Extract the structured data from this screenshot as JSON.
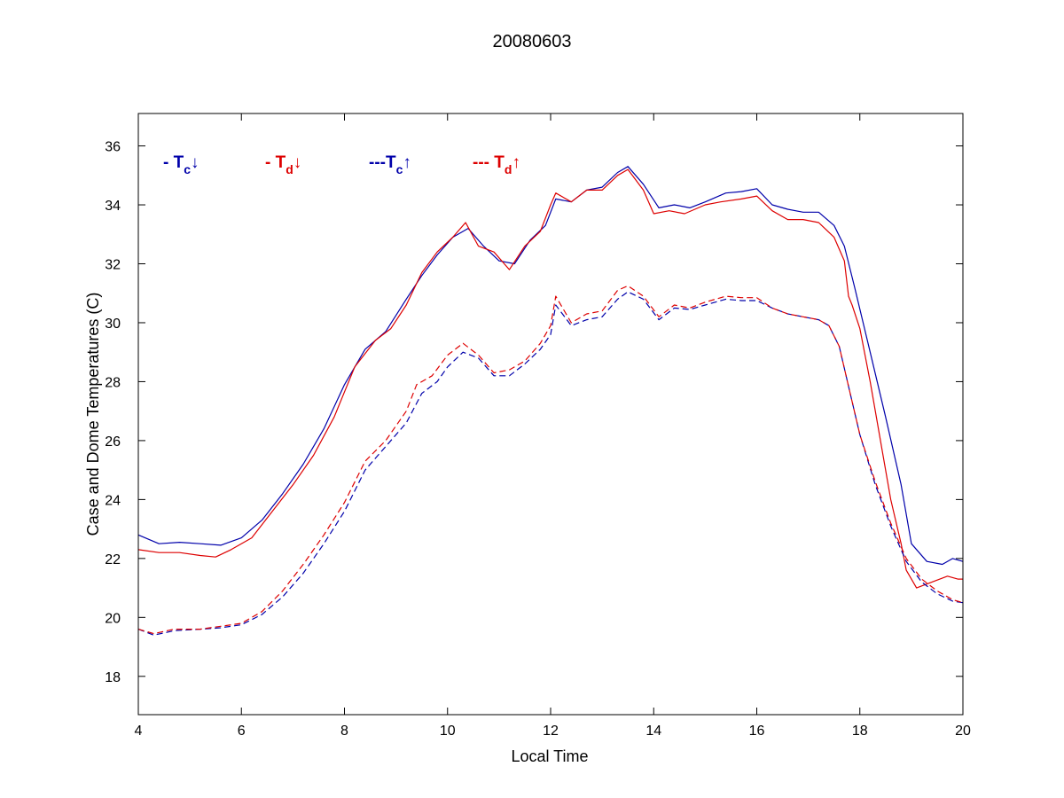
{
  "chart_data": {
    "type": "line",
    "title": "20080603",
    "xlabel": "Local Time",
    "ylabel": "Case and Dome Temperatures (C)",
    "xlim": [
      4,
      20
    ],
    "ylim": [
      16.7,
      37.1
    ],
    "xticks": [
      4,
      6,
      8,
      10,
      12,
      14,
      16,
      18,
      20
    ],
    "yticks": [
      18,
      20,
      22,
      24,
      26,
      28,
      30,
      32,
      34,
      36
    ],
    "xtick_labels": [
      "4",
      "6",
      "8",
      "10",
      "12",
      "14",
      "16",
      "18",
      "20"
    ],
    "ytick_labels": [
      "18",
      "20",
      "22",
      "24",
      "26",
      "28",
      "30",
      "32",
      "34",
      "36"
    ],
    "grid": false,
    "legend_position": "top-left inside",
    "legend": [
      {
        "prefix": "- T",
        "sub": "c",
        "arrow": "↓",
        "color": "#0000aa"
      },
      {
        "prefix": "- T",
        "sub": "d",
        "arrow": "↓",
        "color": "#dd0000"
      },
      {
        "prefix": "---T",
        "sub": "c",
        "arrow": "↑",
        "color": "#0000aa"
      },
      {
        "prefix": "--- T",
        "sub": "d",
        "arrow": "↑",
        "color": "#dd0000"
      }
    ],
    "series": [
      {
        "color": "#0000aa",
        "dash": "solid",
        "x": [
          4.0,
          4.4,
          4.8,
          5.2,
          5.6,
          6.0,
          6.4,
          6.8,
          7.2,
          7.6,
          8.0,
          8.4,
          8.8,
          9.2,
          9.5,
          9.8,
          10.1,
          10.4,
          10.7,
          11.0,
          11.3,
          11.6,
          11.9,
          12.1,
          12.4,
          12.7,
          13.0,
          13.3,
          13.5,
          13.8,
          14.1,
          14.4,
          14.7,
          15.0,
          15.4,
          15.7,
          16.0,
          16.3,
          16.6,
          16.9,
          17.2,
          17.5,
          17.7,
          17.9,
          18.2,
          18.5,
          18.8,
          19.0,
          19.3,
          19.6,
          19.8,
          20.0
        ],
        "y": [
          22.8,
          22.5,
          22.55,
          22.5,
          22.45,
          22.7,
          23.3,
          24.2,
          25.2,
          26.4,
          27.9,
          29.1,
          29.7,
          30.8,
          31.6,
          32.3,
          32.9,
          33.2,
          32.6,
          32.1,
          32.0,
          32.8,
          33.3,
          34.2,
          34.1,
          34.5,
          34.6,
          35.1,
          35.3,
          34.7,
          33.9,
          34.0,
          33.9,
          34.1,
          34.4,
          34.45,
          34.55,
          34.0,
          33.85,
          33.75,
          33.75,
          33.3,
          32.6,
          31.2,
          29.0,
          26.8,
          24.5,
          22.5,
          21.9,
          21.8,
          22.0,
          21.9
        ]
      },
      {
        "color": "#dd0000",
        "dash": "solid",
        "x": [
          4.0,
          4.4,
          4.8,
          5.2,
          5.5,
          5.8,
          6.2,
          6.6,
          7.0,
          7.4,
          7.8,
          8.2,
          8.6,
          8.9,
          9.2,
          9.5,
          9.8,
          10.1,
          10.35,
          10.6,
          10.9,
          11.2,
          11.5,
          11.8,
          12.0,
          12.1,
          12.4,
          12.7,
          13.0,
          13.3,
          13.5,
          13.8,
          14.0,
          14.3,
          14.6,
          15.0,
          15.3,
          15.7,
          16.0,
          16.3,
          16.6,
          16.9,
          17.2,
          17.5,
          17.7,
          17.78,
          17.85,
          18.0,
          18.2,
          18.4,
          18.6,
          18.8,
          18.9,
          19.1,
          19.4,
          19.7,
          19.9,
          20.0
        ],
        "y": [
          22.3,
          22.2,
          22.2,
          22.1,
          22.05,
          22.3,
          22.7,
          23.6,
          24.5,
          25.5,
          26.8,
          28.5,
          29.4,
          29.8,
          30.6,
          31.7,
          32.4,
          32.9,
          33.4,
          32.6,
          32.4,
          31.8,
          32.6,
          33.1,
          34.0,
          34.4,
          34.1,
          34.5,
          34.5,
          35.0,
          35.2,
          34.5,
          33.7,
          33.8,
          33.7,
          34.0,
          34.1,
          34.2,
          34.3,
          33.8,
          33.5,
          33.5,
          33.4,
          32.9,
          32.1,
          30.9,
          30.6,
          29.8,
          28.0,
          26.0,
          24.0,
          22.5,
          21.6,
          21.0,
          21.2,
          21.4,
          21.3,
          21.3
        ]
      },
      {
        "color": "#0000aa",
        "dash": "dashed",
        "x": [
          4.0,
          4.3,
          4.7,
          5.2,
          5.6,
          6.0,
          6.4,
          6.8,
          7.2,
          7.6,
          8.0,
          8.4,
          8.8,
          9.2,
          9.5,
          9.8,
          10.0,
          10.3,
          10.6,
          10.9,
          11.2,
          11.5,
          11.8,
          12.0,
          12.1,
          12.4,
          12.7,
          13.0,
          13.3,
          13.5,
          13.8,
          14.1,
          14.4,
          14.7,
          15.0,
          15.4,
          15.7,
          16.0,
          16.3,
          16.6,
          16.9,
          17.2,
          17.4,
          17.6,
          17.8,
          18.0,
          18.3,
          18.6,
          18.9,
          19.2,
          19.5,
          19.8,
          20.0
        ],
        "y": [
          19.6,
          19.4,
          19.55,
          19.6,
          19.65,
          19.75,
          20.1,
          20.7,
          21.5,
          22.5,
          23.6,
          25.0,
          25.8,
          26.6,
          27.6,
          28.0,
          28.5,
          29.0,
          28.8,
          28.2,
          28.2,
          28.6,
          29.1,
          29.6,
          30.6,
          29.9,
          30.1,
          30.2,
          30.8,
          31.05,
          30.8,
          30.1,
          30.5,
          30.45,
          30.6,
          30.8,
          30.75,
          30.75,
          30.5,
          30.3,
          30.2,
          30.1,
          29.9,
          29.2,
          27.7,
          26.2,
          24.5,
          23.1,
          21.9,
          21.2,
          20.8,
          20.55,
          20.5
        ]
      },
      {
        "color": "#dd0000",
        "dash": "dashed",
        "x": [
          4.0,
          4.3,
          4.7,
          5.2,
          5.6,
          6.0,
          6.4,
          6.8,
          7.2,
          7.6,
          8.0,
          8.4,
          8.8,
          9.2,
          9.4,
          9.7,
          10.0,
          10.3,
          10.6,
          10.9,
          11.2,
          11.5,
          11.8,
          12.0,
          12.1,
          12.4,
          12.7,
          13.0,
          13.3,
          13.5,
          13.8,
          14.1,
          14.4,
          14.7,
          15.0,
          15.4,
          15.7,
          16.0,
          16.3,
          16.6,
          16.9,
          17.2,
          17.4,
          17.6,
          17.8,
          18.0,
          18.3,
          18.6,
          18.9,
          19.2,
          19.5,
          19.8,
          20.0
        ],
        "y": [
          19.6,
          19.45,
          19.6,
          19.6,
          19.7,
          19.8,
          20.2,
          20.9,
          21.8,
          22.8,
          23.9,
          25.3,
          26.0,
          27.0,
          27.9,
          28.2,
          28.9,
          29.3,
          28.9,
          28.3,
          28.4,
          28.7,
          29.3,
          29.9,
          30.9,
          30.0,
          30.3,
          30.4,
          31.1,
          31.25,
          30.9,
          30.2,
          30.6,
          30.5,
          30.7,
          30.9,
          30.85,
          30.85,
          30.5,
          30.3,
          30.2,
          30.1,
          29.9,
          29.2,
          27.7,
          26.2,
          24.6,
          23.2,
          22.0,
          21.3,
          20.9,
          20.6,
          20.5
        ]
      }
    ]
  }
}
